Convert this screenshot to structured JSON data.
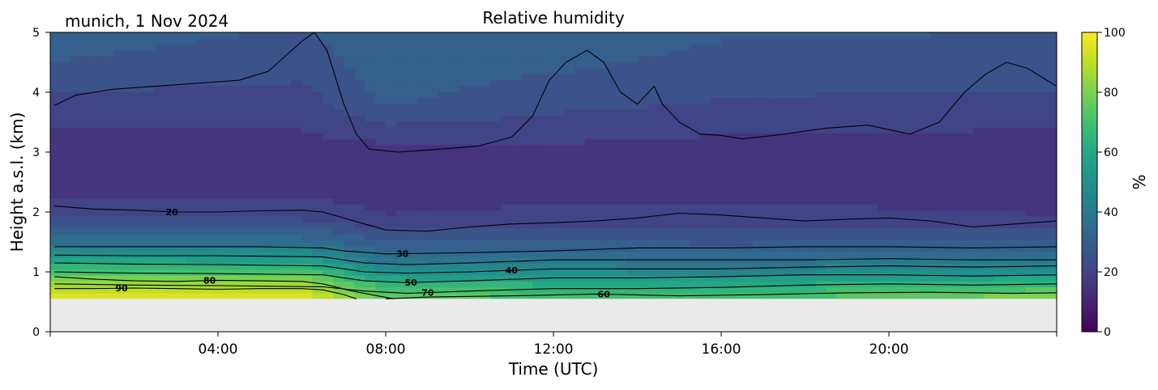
{
  "header": {
    "location_date": "munich, 1 Nov 2024",
    "title": "Relative humidity"
  },
  "chart_data": {
    "type": "heatmap",
    "title": "Relative humidity",
    "xlabel": "Time (UTC)",
    "ylabel": "Height a.s.l. (km)",
    "xlim_hours": [
      0,
      24
    ],
    "ylim_km": [
      0,
      5
    ],
    "xticks": [
      {
        "hour": 4,
        "label": "04:00"
      },
      {
        "hour": 8,
        "label": "08:00"
      },
      {
        "hour": 12,
        "label": "12:00"
      },
      {
        "hour": 16,
        "label": "16:00"
      },
      {
        "hour": 20,
        "label": "20:00"
      }
    ],
    "yticks": [
      0,
      1,
      2,
      3,
      4,
      5
    ],
    "ground_height_km": 0.55,
    "colormap": "viridis",
    "colorbar": {
      "label": "%",
      "min": 0,
      "max": 100,
      "ticks": [
        0,
        20,
        40,
        60,
        80,
        100
      ]
    },
    "no_data_color": "#ebebeb",
    "contour_line_color": "#000000",
    "rh_profile_control_points": {
      "height_km": [
        0.55,
        0.8,
        1.0,
        1.2,
        1.5,
        1.9,
        2.5,
        3.0,
        3.8,
        4.4,
        5.0
      ],
      "rh_percent_at_hours": [
        {
          "hour": 0,
          "rh": [
            95,
            86,
            72,
            58,
            36,
            22,
            14,
            15,
            20,
            27,
            30
          ]
        },
        {
          "hour": 6,
          "rh": [
            96,
            86,
            72,
            56,
            36,
            22,
            14,
            15,
            20,
            24,
            27
          ]
        },
        {
          "hour": 8,
          "rh": [
            76,
            65,
            50,
            38,
            28,
            18,
            14,
            15,
            28,
            30,
            31
          ]
        },
        {
          "hour": 12,
          "rh": [
            74,
            62,
            48,
            38,
            28,
            19,
            15,
            16,
            24,
            28,
            30
          ]
        },
        {
          "hour": 16,
          "rh": [
            72,
            60,
            46,
            36,
            27,
            19,
            15,
            15,
            22,
            26,
            28
          ]
        },
        {
          "hour": 20,
          "rh": [
            76,
            64,
            48,
            38,
            28,
            19,
            14,
            15,
            21,
            25,
            28
          ]
        },
        {
          "hour": 24,
          "rh": [
            84,
            66,
            50,
            38,
            28,
            18,
            13,
            14,
            21,
            25,
            27
          ]
        }
      ]
    },
    "contours": [
      {
        "level": 20,
        "label": "20",
        "label_hour": 2.9,
        "points": [
          [
            0.1,
            2.1
          ],
          [
            1,
            2.05
          ],
          [
            2,
            2.03
          ],
          [
            3,
            2.0
          ],
          [
            4,
            2.0
          ],
          [
            5,
            2.02
          ],
          [
            6,
            2.03
          ],
          [
            6.5,
            2.0
          ],
          [
            7,
            1.9
          ],
          [
            7.5,
            1.8
          ],
          [
            8,
            1.7
          ],
          [
            9,
            1.68
          ],
          [
            10,
            1.75
          ],
          [
            11,
            1.8
          ],
          [
            12,
            1.82
          ],
          [
            13,
            1.85
          ],
          [
            14,
            1.9
          ],
          [
            15,
            1.98
          ],
          [
            16,
            1.95
          ],
          [
            17,
            1.9
          ],
          [
            18,
            1.85
          ],
          [
            19,
            1.88
          ],
          [
            20,
            1.9
          ],
          [
            21,
            1.85
          ],
          [
            22,
            1.75
          ],
          [
            23,
            1.8
          ],
          [
            24,
            1.85
          ]
        ]
      },
      {
        "level": 30,
        "label": "30",
        "label_hour": 8.4,
        "points": [
          [
            0.1,
            1.42
          ],
          [
            1,
            1.42
          ],
          [
            3,
            1.42
          ],
          [
            5,
            1.42
          ],
          [
            6.5,
            1.4
          ],
          [
            7,
            1.35
          ],
          [
            8,
            1.3
          ],
          [
            10,
            1.32
          ],
          [
            12,
            1.35
          ],
          [
            14,
            1.4
          ],
          [
            16,
            1.4
          ],
          [
            18,
            1.42
          ],
          [
            20,
            1.42
          ],
          [
            22,
            1.4
          ],
          [
            24,
            1.42
          ]
        ]
      },
      {
        "level": 35,
        "label": "",
        "label_hour": null,
        "points": [
          [
            0.1,
            1.28
          ],
          [
            2,
            1.27
          ],
          [
            4,
            1.27
          ],
          [
            6.5,
            1.25
          ],
          [
            7.5,
            1.15
          ],
          [
            8.5,
            1.12
          ],
          [
            10,
            1.15
          ],
          [
            12,
            1.2
          ],
          [
            14,
            1.2
          ],
          [
            16,
            1.2
          ],
          [
            18,
            1.2
          ],
          [
            20,
            1.22
          ],
          [
            22,
            1.2
          ],
          [
            24,
            1.2
          ]
        ]
      },
      {
        "level": 40,
        "label": "40",
        "label_hour": 11.0,
        "points": [
          [
            0.1,
            1.15
          ],
          [
            2,
            1.13
          ],
          [
            4,
            1.12
          ],
          [
            6.5,
            1.1
          ],
          [
            7.5,
            1.0
          ],
          [
            8.5,
            0.98
          ],
          [
            10,
            1.0
          ],
          [
            12,
            1.05
          ],
          [
            14,
            1.05
          ],
          [
            16,
            1.05
          ],
          [
            18,
            1.08
          ],
          [
            20,
            1.1
          ],
          [
            22,
            1.08
          ],
          [
            24,
            1.1
          ]
        ]
      },
      {
        "level": 50,
        "label": "50",
        "label_hour": 8.6,
        "points": [
          [
            0.1,
            1.0
          ],
          [
            2,
            0.98
          ],
          [
            4,
            0.97
          ],
          [
            6.5,
            0.95
          ],
          [
            7.5,
            0.85
          ],
          [
            8.5,
            0.82
          ],
          [
            10,
            0.85
          ],
          [
            12,
            0.9
          ],
          [
            14,
            0.9
          ],
          [
            16,
            0.92
          ],
          [
            18,
            0.95
          ],
          [
            20,
            0.95
          ],
          [
            22,
            0.93
          ],
          [
            24,
            0.95
          ]
        ]
      },
      {
        "level": 70,
        "label": "70",
        "label_hour": 9.0,
        "points": [
          [
            0.1,
            0.8
          ],
          [
            2,
            0.78
          ],
          [
            4,
            0.77
          ],
          [
            6.5,
            0.75
          ],
          [
            7.5,
            0.68
          ],
          [
            8.5,
            0.64
          ],
          [
            10,
            0.68
          ],
          [
            12,
            0.72
          ],
          [
            14,
            0.72
          ],
          [
            16,
            0.74
          ],
          [
            18,
            0.78
          ],
          [
            20,
            0.8
          ],
          [
            22,
            0.78
          ],
          [
            24,
            0.8
          ]
        ]
      },
      {
        "level": 60,
        "label": "60",
        "label_hour": 13.2,
        "points": [
          [
            8.0,
            0.55
          ],
          [
            9,
            0.58
          ],
          [
            11,
            0.6
          ],
          [
            13,
            0.63
          ],
          [
            15,
            0.6
          ],
          [
            17,
            0.62
          ],
          [
            19,
            0.65
          ],
          [
            21,
            0.66
          ],
          [
            23,
            0.64
          ],
          [
            24,
            0.65
          ]
        ]
      },
      {
        "level": 80,
        "label": "80",
        "label_hour": 3.8,
        "points": [
          [
            0.1,
            0.92
          ],
          [
            1,
            0.88
          ],
          [
            2,
            0.85
          ],
          [
            3,
            0.84
          ],
          [
            4,
            0.86
          ],
          [
            5,
            0.85
          ],
          [
            6,
            0.84
          ],
          [
            6.5,
            0.8
          ],
          [
            7.2,
            0.68
          ],
          [
            7.8,
            0.6
          ],
          [
            8.2,
            0.55
          ]
        ]
      },
      {
        "level": 90,
        "label": "90",
        "label_hour": 1.7,
        "points": [
          [
            0.1,
            0.72
          ],
          [
            1,
            0.72
          ],
          [
            2,
            0.73
          ],
          [
            3,
            0.72
          ],
          [
            4,
            0.71
          ],
          [
            5,
            0.72
          ],
          [
            6,
            0.72
          ],
          [
            6.5,
            0.7
          ],
          [
            7,
            0.62
          ],
          [
            7.3,
            0.55
          ]
        ]
      },
      {
        "level": 25,
        "label": "",
        "label_hour": null,
        "points": [
          [
            0.1,
            3.78
          ],
          [
            0.6,
            3.95
          ],
          [
            1.5,
            4.05
          ],
          [
            2.5,
            4.1
          ],
          [
            3.5,
            4.15
          ],
          [
            4.5,
            4.2
          ],
          [
            5.2,
            4.35
          ],
          [
            5.6,
            4.6
          ],
          [
            6.0,
            4.85
          ],
          [
            6.3,
            5.0
          ],
          [
            6.6,
            4.7
          ],
          [
            7.0,
            3.8
          ],
          [
            7.3,
            3.3
          ],
          [
            7.6,
            3.05
          ],
          [
            8.3,
            3.0
          ],
          [
            9.3,
            3.05
          ],
          [
            10.2,
            3.1
          ],
          [
            11.0,
            3.25
          ],
          [
            11.5,
            3.6
          ],
          [
            11.9,
            4.2
          ],
          [
            12.3,
            4.5
          ],
          [
            12.8,
            4.7
          ],
          [
            13.2,
            4.5
          ],
          [
            13.6,
            4.0
          ],
          [
            14.0,
            3.8
          ],
          [
            14.4,
            4.1
          ],
          [
            14.6,
            3.8
          ],
          [
            15.0,
            3.5
          ],
          [
            15.5,
            3.3
          ],
          [
            16.0,
            3.28
          ],
          [
            16.5,
            3.22
          ],
          [
            17.5,
            3.3
          ],
          [
            18.5,
            3.4
          ],
          [
            19.5,
            3.45
          ],
          [
            20.5,
            3.3
          ],
          [
            21.2,
            3.5
          ],
          [
            21.8,
            4.0
          ],
          [
            22.3,
            4.3
          ],
          [
            22.8,
            4.5
          ],
          [
            23.3,
            4.4
          ],
          [
            24,
            4.1
          ]
        ]
      }
    ]
  }
}
